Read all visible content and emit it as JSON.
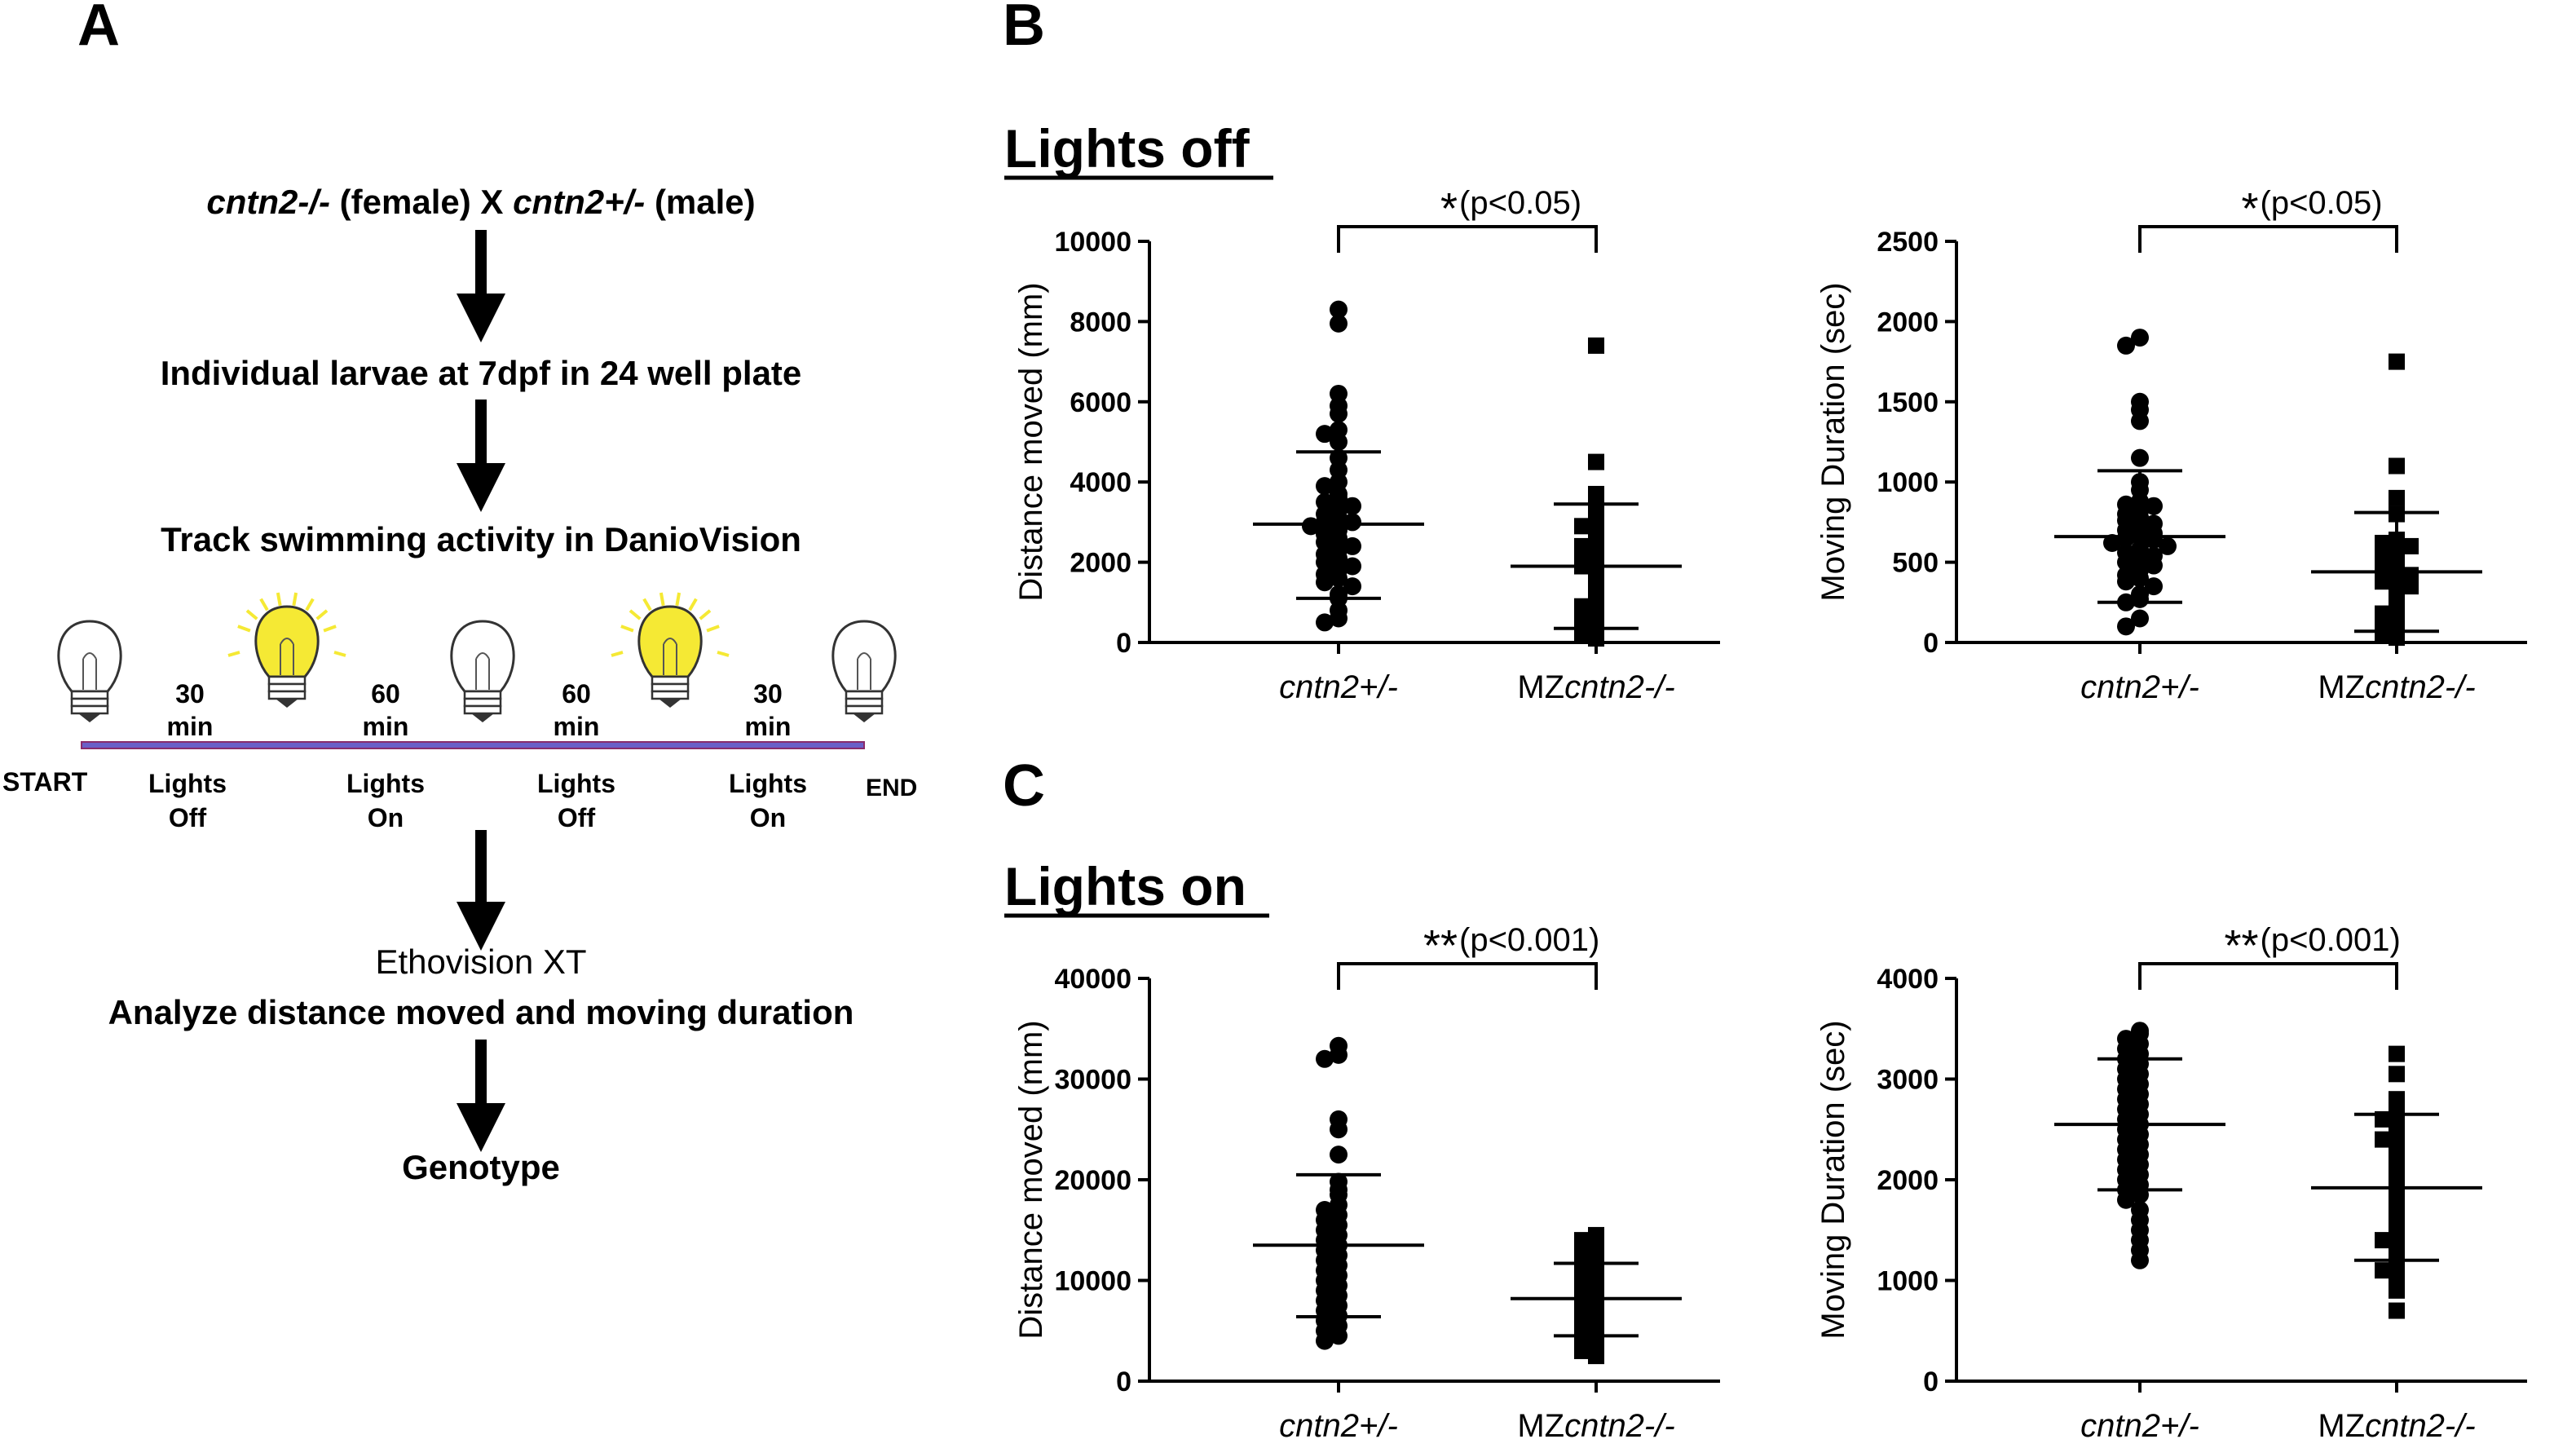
{
  "panel_a": {
    "letter": "A",
    "cross": {
      "female_genotype": "cntn2-/-",
      "female_label": " (female) X ",
      "male_genotype": "cntn2+/-",
      "male_label": " (male)"
    },
    "step_larvae": "Individual larvae at 7dpf in 24 well plate",
    "step_track": "Track swimming activity in DanioVision",
    "timeline": {
      "start": "START",
      "end": "END",
      "durations": [
        {
          "num": "30",
          "unit": "min"
        },
        {
          "num": "60",
          "unit": "min"
        },
        {
          "num": "60",
          "unit": "min"
        },
        {
          "num": "30",
          "unit": "min"
        }
      ],
      "phases": [
        {
          "line1": "Lights",
          "line2": "Off"
        },
        {
          "line1": "Lights",
          "line2": "On"
        },
        {
          "line1": "Lights",
          "line2": "Off"
        },
        {
          "line1": "Lights",
          "line2": "On"
        }
      ],
      "bulbs": [
        "off",
        "on",
        "off",
        "on",
        "off"
      ],
      "bulb_on_color": "#f5e934"
    },
    "step_ethovision_1": "Ethovision XT",
    "step_ethovision_2": "Analyze distance moved and moving duration",
    "step_genotype": "Genotype"
  },
  "panel_b": {
    "letter": "B",
    "heading": "Lights off"
  },
  "panel_c": {
    "letter": "C",
    "heading": "Lights on"
  },
  "chart_data": [
    {
      "type": "scatter",
      "panel": "B-left",
      "ylabel": "Distance moved (mm)",
      "ylim": [
        0,
        10000
      ],
      "yticks": [
        0,
        2000,
        4000,
        6000,
        8000,
        10000
      ],
      "categories": [
        "cntn2+/-",
        "MZcntn2-/-"
      ],
      "category_display": [
        {
          "prefix": "",
          "italic": "cntn2+/-"
        },
        {
          "prefix": "MZ",
          "italic": "cntn2-/-"
        }
      ],
      "series": [
        {
          "marker": "circle",
          "mean": 2950,
          "sd_low": 1100,
          "sd_high": 4750,
          "values": [
            8300,
            7950,
            6200,
            5900,
            5700,
            5300,
            5200,
            5000,
            4600,
            4300,
            4000,
            3900,
            3700,
            3600,
            3500,
            3400,
            3300,
            3200,
            3100,
            3000,
            3000,
            2900,
            2800,
            2700,
            2600,
            2500,
            2400,
            2300,
            2200,
            2100,
            2000,
            1900,
            1800,
            1700,
            1600,
            1500,
            1400,
            1200,
            1100,
            800,
            600,
            500
          ]
        },
        {
          "marker": "square",
          "mean": 1900,
          "sd_low": 350,
          "sd_high": 3450,
          "values": [
            7400,
            4500,
            3700,
            3500,
            3200,
            3000,
            2900,
            2800,
            2500,
            2400,
            2300,
            2200,
            2100,
            1900,
            1800,
            1500,
            1200,
            1000,
            900,
            800,
            700,
            500,
            400,
            300,
            200,
            100
          ]
        }
      ],
      "significance": {
        "stars": "*",
        "label": "(p<0.05)"
      }
    },
    {
      "type": "scatter",
      "panel": "B-right",
      "ylabel": "Moving Duration (sec)",
      "ylim": [
        0,
        2500
      ],
      "yticks": [
        0,
        500,
        1000,
        1500,
        2000,
        2500
      ],
      "categories": [
        "cntn2+/-",
        "MZcntn2-/-"
      ],
      "category_display": [
        {
          "prefix": "",
          "italic": "cntn2+/-"
        },
        {
          "prefix": "MZ",
          "italic": "cntn2-/-"
        }
      ],
      "series": [
        {
          "marker": "circle",
          "mean": 660,
          "sd_low": 250,
          "sd_high": 1070,
          "values": [
            1900,
            1850,
            1500,
            1450,
            1380,
            1150,
            1000,
            950,
            880,
            860,
            850,
            820,
            800,
            780,
            760,
            740,
            720,
            700,
            680,
            660,
            650,
            640,
            620,
            600,
            580,
            560,
            540,
            520,
            500,
            480,
            450,
            420,
            400,
            380,
            350,
            300,
            270,
            250,
            150,
            100
          ]
        },
        {
          "marker": "square",
          "mean": 440,
          "sd_low": 70,
          "sd_high": 810,
          "values": [
            1750,
            1100,
            900,
            800,
            640,
            620,
            600,
            580,
            560,
            520,
            480,
            450,
            440,
            420,
            400,
            380,
            350,
            300,
            250,
            200,
            180,
            150,
            100,
            80,
            50,
            30
          ]
        }
      ],
      "significance": {
        "stars": "*",
        "label": "(p<0.05)"
      }
    },
    {
      "type": "scatter",
      "panel": "C-left",
      "ylabel": "Distance moved (mm)",
      "ylim": [
        0,
        40000
      ],
      "yticks": [
        0,
        10000,
        20000,
        30000,
        40000
      ],
      "categories": [
        "cntn2+/-",
        "MZcntn2-/-"
      ],
      "category_display": [
        {
          "prefix": "",
          "italic": "cntn2+/-"
        },
        {
          "prefix": "MZ",
          "italic": "cntn2-/-"
        }
      ],
      "series": [
        {
          "marker": "circle",
          "mean": 13500,
          "sd_low": 6400,
          "sd_high": 20500,
          "values": [
            33300,
            32400,
            32000,
            26000,
            25000,
            22500,
            19800,
            19000,
            18500,
            17500,
            17000,
            16500,
            16000,
            15500,
            15000,
            14500,
            14000,
            13500,
            13000,
            12500,
            12000,
            11500,
            11000,
            10500,
            10000,
            9500,
            9000,
            8500,
            8000,
            7500,
            7000,
            6500,
            6000,
            5500,
            5000,
            4500,
            4000
          ]
        },
        {
          "marker": "square",
          "mean": 8200,
          "sd_low": 4500,
          "sd_high": 11700,
          "values": [
            14500,
            14000,
            13500,
            13000,
            12500,
            12000,
            11500,
            11000,
            10500,
            10000,
            9500,
            9000,
            8500,
            8000,
            7500,
            7000,
            6500,
            6000,
            5500,
            5000,
            4500,
            4000,
            3500,
            3000,
            2500
          ]
        }
      ],
      "significance": {
        "stars": "**",
        "label": "(p<0.001)"
      }
    },
    {
      "type": "scatter",
      "panel": "C-right",
      "ylabel": "Moving Duration (sec)",
      "ylim": [
        0,
        4000
      ],
      "yticks": [
        0,
        1000,
        2000,
        3000,
        4000
      ],
      "categories": [
        "cntn2+/-",
        "MZcntn2-/-"
      ],
      "category_display": [
        {
          "prefix": "",
          "italic": "cntn2+/-"
        },
        {
          "prefix": "MZ",
          "italic": "cntn2-/-"
        }
      ],
      "series": [
        {
          "marker": "circle",
          "mean": 2550,
          "sd_low": 1900,
          "sd_high": 3200,
          "values": [
            3480,
            3450,
            3400,
            3350,
            3300,
            3250,
            3200,
            3150,
            3100,
            3050,
            3000,
            2950,
            2900,
            2850,
            2800,
            2750,
            2700,
            2650,
            2600,
            2550,
            2500,
            2450,
            2400,
            2350,
            2300,
            2250,
            2200,
            2150,
            2100,
            2050,
            2000,
            1950,
            1900,
            1850,
            1800,
            1700,
            1600,
            1500,
            1400,
            1300,
            1200
          ]
        },
        {
          "marker": "square",
          "mean": 1920,
          "sd_low": 1200,
          "sd_high": 2650,
          "values": [
            3250,
            3050,
            2800,
            2700,
            2650,
            2600,
            2550,
            2450,
            2400,
            2300,
            2200,
            2100,
            2000,
            1900,
            1800,
            1700,
            1600,
            1500,
            1450,
            1400,
            1300,
            1200,
            1150,
            1100,
            1000,
            900,
            700
          ]
        }
      ],
      "significance": {
        "stars": "**",
        "label": "(p<0.001)"
      }
    }
  ]
}
